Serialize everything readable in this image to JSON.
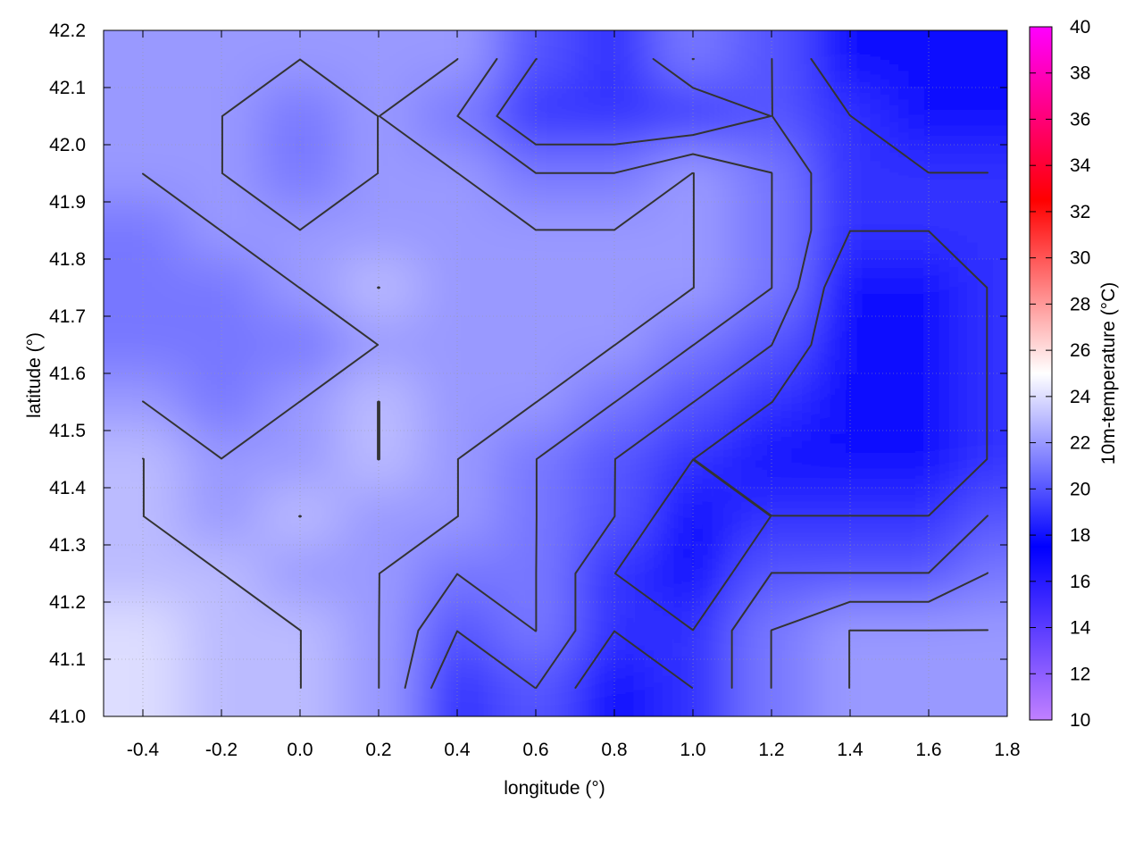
{
  "chart_data": {
    "type": "heatmap",
    "title": "",
    "xlabel": "longitude (°)",
    "ylabel": "latitude (°)",
    "colorbar_label": "10m-temperature (°C)",
    "xlim": [
      -0.5,
      1.8
    ],
    "ylim": [
      41.0,
      42.2
    ],
    "clim": [
      10,
      40
    ],
    "xticks": [
      "-0.4",
      "-0.2",
      "0.0",
      "0.2",
      "0.4",
      "0.6",
      "0.8",
      "1.0",
      "1.2",
      "1.4",
      "1.6",
      "1.8"
    ],
    "yticks": [
      "41.0",
      "41.1",
      "41.2",
      "41.3",
      "41.4",
      "41.5",
      "41.6",
      "41.7",
      "41.8",
      "41.9",
      "42.0",
      "42.1",
      "42.2"
    ],
    "cticks": [
      "10",
      "12",
      "14",
      "16",
      "18",
      "20",
      "22",
      "24",
      "26",
      "28",
      "30",
      "32",
      "34",
      "36",
      "38",
      "40"
    ],
    "grid": true,
    "palette": {
      "10": "#c080ff",
      "17.5": "#0000ff",
      "25": "#ffffff",
      "32.5": "#ff0000",
      "40": "#ff00ff"
    },
    "contours": true,
    "contour_color": "#333333",
    "lon": [
      -0.4,
      -0.2,
      0.0,
      0.2,
      0.4,
      0.6,
      0.8,
      1.0,
      1.2,
      1.4,
      1.6,
      1.75
    ],
    "lat": [
      42.15,
      42.05,
      41.95,
      41.85,
      41.75,
      41.65,
      41.55,
      41.45,
      41.35,
      41.25,
      41.15,
      41.05
    ],
    "values": [
      [
        22,
        22,
        22,
        22,
        22,
        20,
        19,
        21,
        20,
        18,
        17,
        17
      ],
      [
        22,
        22,
        21,
        22,
        21,
        19,
        19,
        19,
        20,
        19,
        18,
        18
      ],
      [
        22,
        22,
        21,
        22,
        22,
        21,
        21,
        22,
        21,
        19,
        19,
        19
      ],
      [
        21,
        22,
        22,
        22,
        22,
        22,
        22,
        22,
        21,
        19,
        19,
        19
      ],
      [
        21,
        21,
        22,
        23,
        22,
        22,
        22,
        22,
        21,
        18,
        18,
        19
      ],
      [
        21,
        21,
        21,
        22,
        22,
        22,
        22,
        21,
        20,
        18,
        18,
        19
      ],
      [
        22,
        21,
        22,
        23,
        22,
        22,
        21,
        20,
        19,
        18,
        18,
        19
      ],
      [
        23,
        22,
        22,
        23,
        22,
        21,
        20,
        19,
        18,
        18,
        18,
        19
      ],
      [
        23,
        22,
        23,
        22,
        22,
        21,
        20,
        18,
        19,
        19,
        19,
        20
      ],
      [
        23,
        23,
        22,
        22,
        21,
        21,
        19,
        18,
        20,
        20,
        20,
        21
      ],
      [
        24,
        23,
        23,
        22,
        20,
        21,
        19,
        19,
        21,
        22,
        22,
        22
      ],
      [
        24,
        23,
        23,
        22,
        19,
        20,
        18,
        19,
        21,
        22,
        22,
        22
      ]
    ]
  }
}
